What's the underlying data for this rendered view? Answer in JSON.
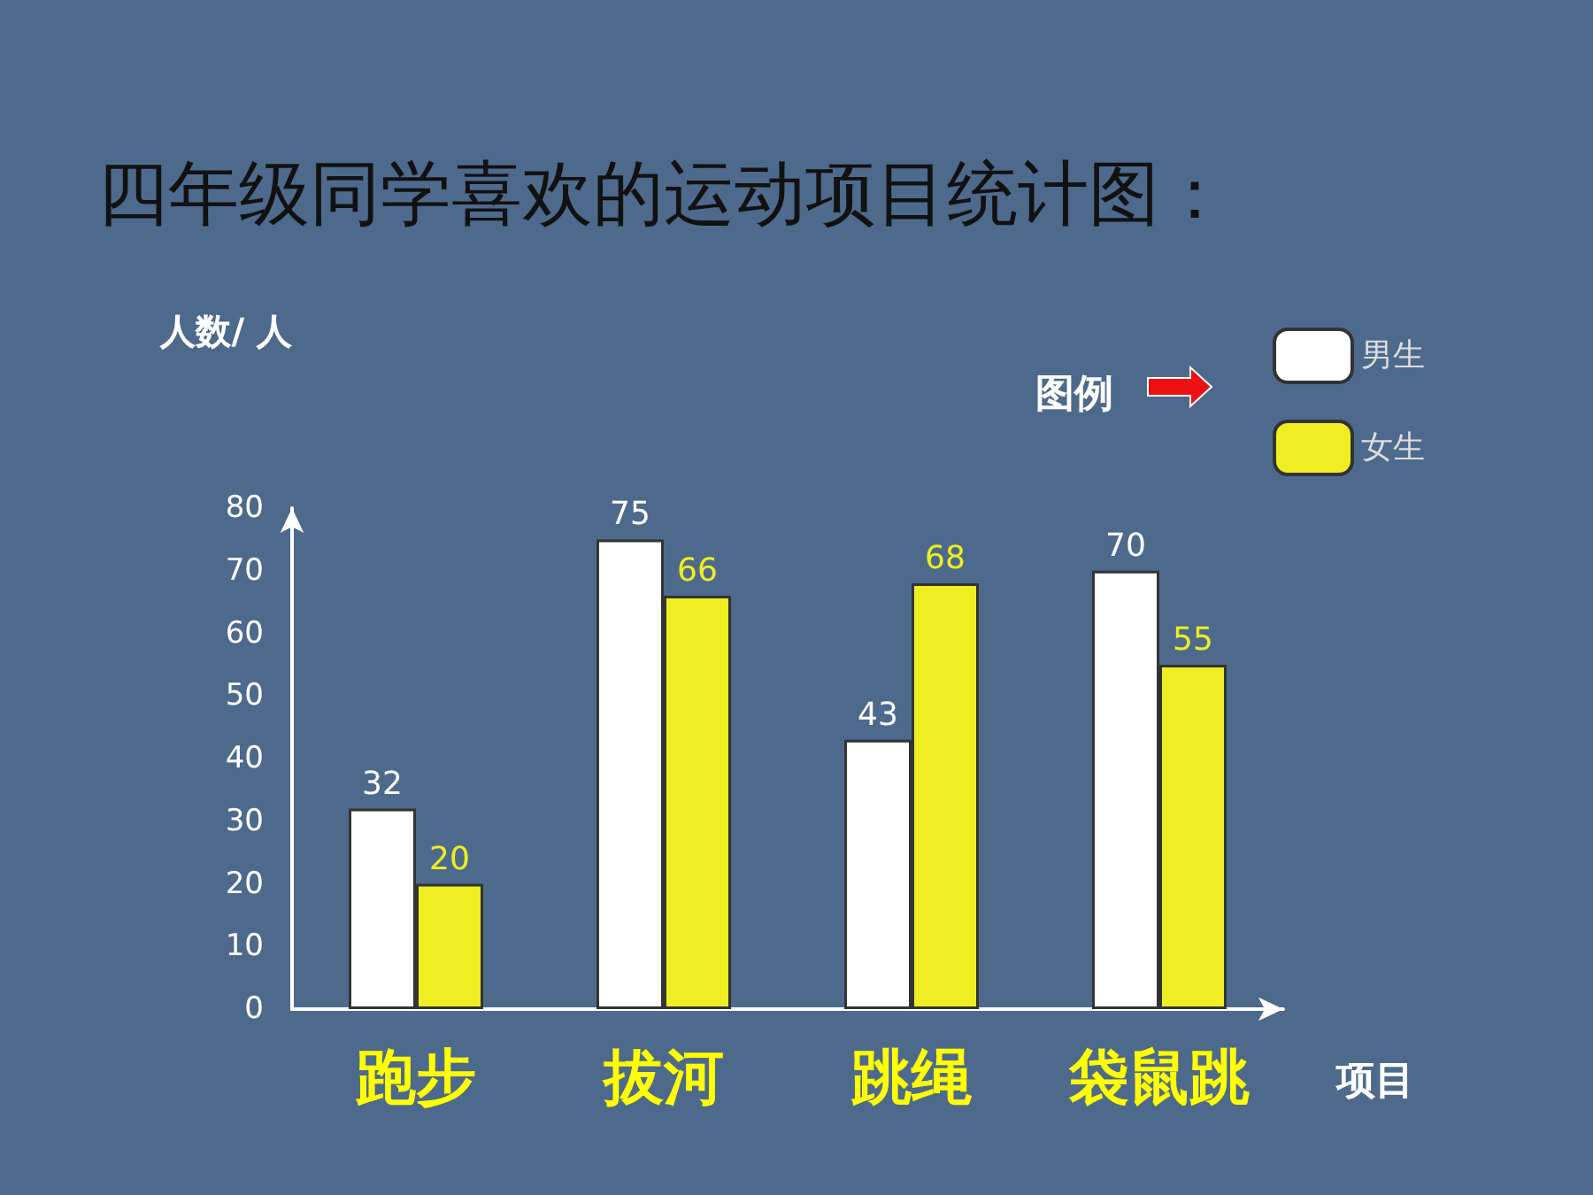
{
  "chart_data": {
    "type": "bar",
    "title": "四年级同学喜欢的运动项目统计图：",
    "xlabel": "项目",
    "ylabel": "人数/ 人",
    "legend_title": "图例",
    "categories": [
      "跑步",
      "拔河",
      "跳绳",
      "袋鼠跳"
    ],
    "series": [
      {
        "name": "男生",
        "color": "#ffffff",
        "values": [
          32,
          75,
          43,
          70
        ]
      },
      {
        "name": "女生",
        "color": "#eeee22",
        "values": [
          20,
          66,
          68,
          55
        ]
      }
    ],
    "ylim": [
      0,
      80
    ],
    "yticks": [
      0,
      10,
      20,
      30,
      40,
      50,
      60,
      70,
      80
    ],
    "data_labels": true,
    "legend": "top right"
  }
}
